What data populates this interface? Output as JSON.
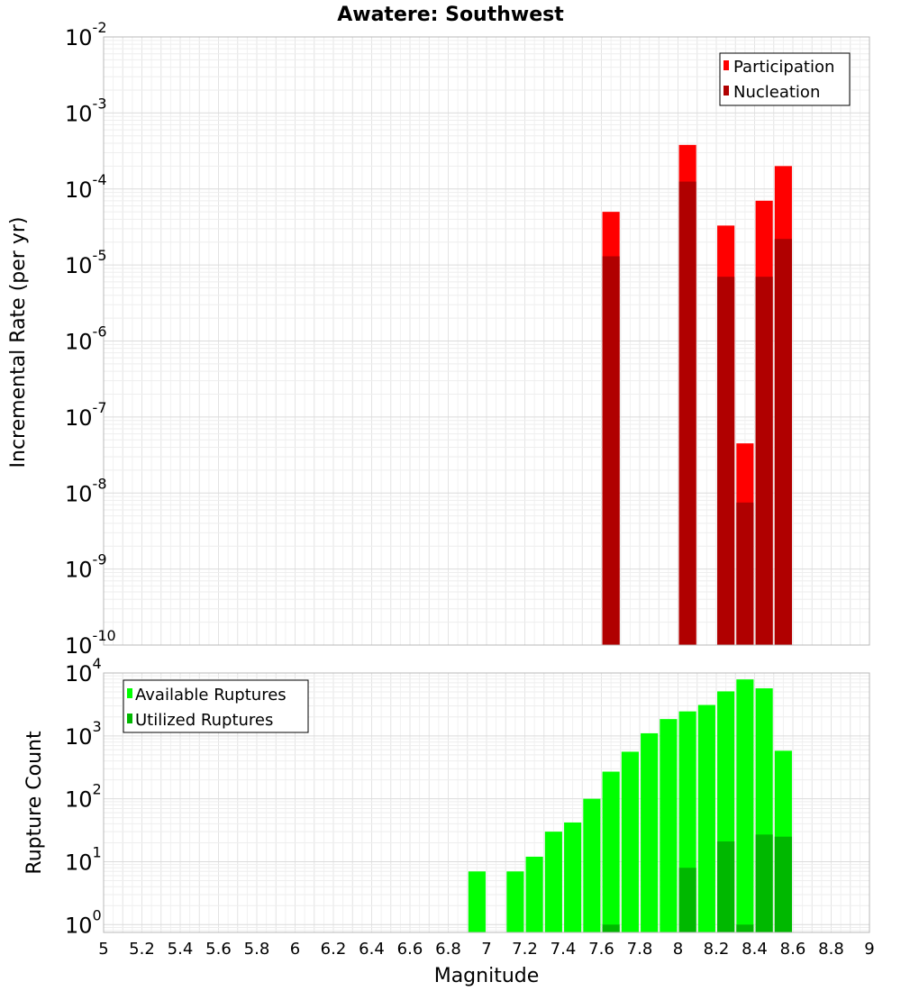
{
  "chart_data": [
    {
      "type": "bar",
      "title": "Awatere: Southwest",
      "xlabel": "",
      "ylabel": "Incremental Rate (per yr)",
      "yscale": "log",
      "xlim": [
        5,
        9
      ],
      "ylim": [
        1e-10,
        0.01
      ],
      "y_tick_exponents": [
        "-10",
        "-9",
        "-8",
        "-7",
        "-6",
        "-5",
        "-4",
        "-3",
        "-2"
      ],
      "legend_position": "top-right",
      "grid": true,
      "bins": [
        7.65,
        8.05,
        8.25,
        8.35,
        8.45,
        8.55
      ],
      "series": [
        {
          "name": "Participation",
          "color": "#ff0000",
          "values": [
            5e-05,
            0.00038,
            3.3e-05,
            4.5e-08,
            7e-05,
            0.0002
          ]
        },
        {
          "name": "Nucleation",
          "color": "#b00000",
          "values": [
            1.3e-05,
            0.000125,
            7e-06,
            7.5e-09,
            7e-06,
            2.2e-05
          ]
        }
      ]
    },
    {
      "type": "bar",
      "title": "",
      "xlabel": "Magnitude",
      "ylabel": "Rupture Count",
      "yscale": "log",
      "xlim": [
        5,
        9
      ],
      "ylim": [
        0.75,
        10000
      ],
      "y_tick_exponents": [
        "0",
        "1",
        "2",
        "3",
        "4"
      ],
      "x_ticks": [
        "5",
        "5.2",
        "5.4",
        "5.6",
        "5.8",
        "6",
        "6.2",
        "6.4",
        "6.6",
        "6.8",
        "7",
        "7.2",
        "7.4",
        "7.6",
        "7.8",
        "8",
        "8.2",
        "8.4",
        "8.6",
        "8.8",
        "9"
      ],
      "legend_position": "top-left",
      "grid": true,
      "bins": [
        6.95,
        7.15,
        7.25,
        7.35,
        7.45,
        7.55,
        7.65,
        7.75,
        7.85,
        7.95,
        8.05,
        8.15,
        8.25,
        8.35,
        8.45,
        8.55
      ],
      "series": [
        {
          "name": "Available Ruptures",
          "color": "#00ff00",
          "values": [
            7,
            7,
            12,
            30,
            42,
            100,
            270,
            560,
            1100,
            1850,
            2450,
            3100,
            5100,
            7900,
            5700,
            580
          ]
        },
        {
          "name": "Utilized Ruptures",
          "color": "#00b800",
          "values": [
            0,
            0,
            0,
            0,
            0,
            0,
            1,
            0,
            0,
            0,
            8,
            0,
            21,
            1,
            27,
            25
          ]
        }
      ]
    }
  ]
}
